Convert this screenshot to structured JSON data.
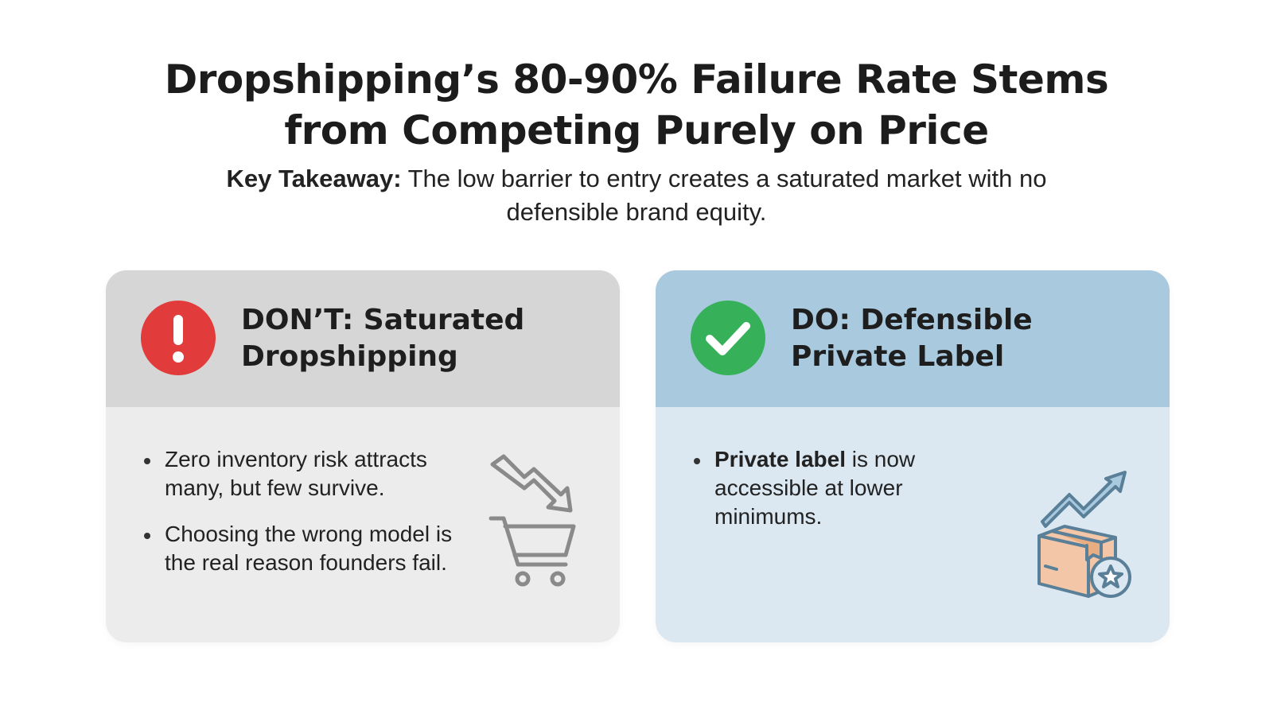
{
  "title": {
    "line1": "Dropshipping’s 80-90% Failure Rate Stems",
    "line2": "from Competing Purely on Price"
  },
  "takeaway": {
    "lead": "Key Takeaway:",
    "text": " The low barrier to entry creates a saturated market with no defensible brand equity."
  },
  "cards": {
    "dont": {
      "title_line1": "DON’T: Saturated",
      "title_line2": "Dropshipping",
      "badge_icon": "exclamation-icon",
      "badge_color": "#e23b3b",
      "bullets": [
        "Zero inventory risk attracts many, but few survive.",
        "Choosing the wrong model is the real reason founders fail."
      ],
      "illustration": "declining-cart-icon"
    },
    "do": {
      "title_line1": "DO: Defensible",
      "title_line2": "Private Label",
      "badge_icon": "checkmark-icon",
      "badge_color": "#36b15a",
      "bullet_bold": "Private label",
      "bullet_rest": " is now accessible at lower minimums.",
      "illustration": "rising-box-star-icon"
    }
  }
}
